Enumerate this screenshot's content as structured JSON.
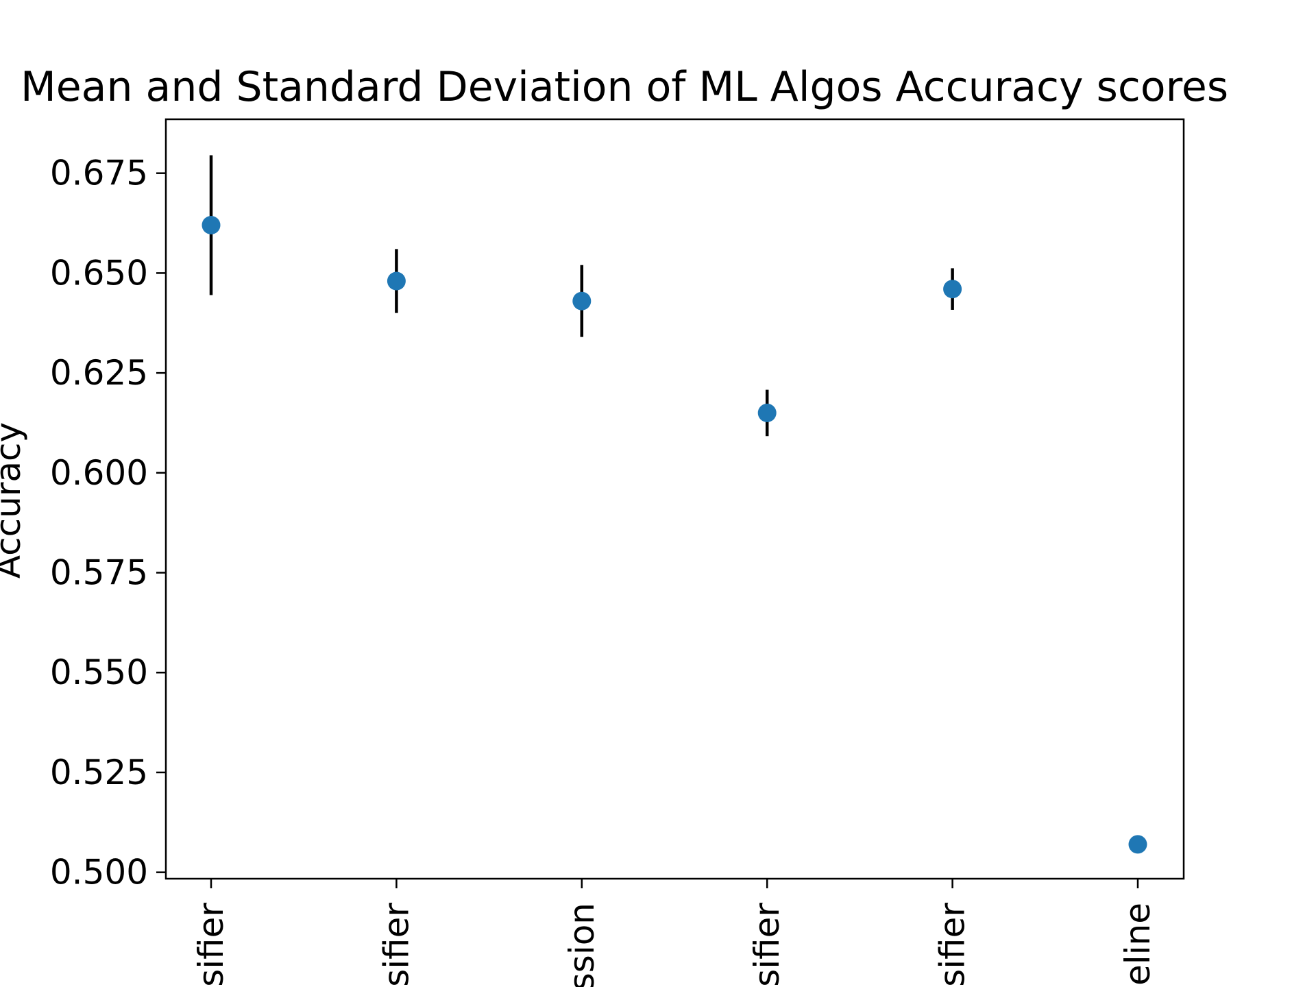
{
  "chart_data": {
    "type": "scatter",
    "title": "Mean and Standard Deviation of ML Algos Accuracy scores",
    "xlabel": "",
    "ylabel": "Accuracy",
    "categories": [
      "sifier",
      "sifier",
      "ssion",
      "sifier",
      "sifier",
      "eline"
    ],
    "series": [
      {
        "values": [
          0.662,
          0.648,
          0.643,
          0.615,
          0.646,
          0.507
        ],
        "std": [
          0.0175,
          0.008,
          0.009,
          0.0058,
          0.0052,
          0.0
        ]
      }
    ],
    "ylim": [
      0.4984,
      0.6885
    ],
    "yticks": [
      0.5,
      0.525,
      0.55,
      0.575,
      0.6,
      0.625,
      0.65,
      0.675
    ],
    "ytick_labels": [
      "0.500",
      "0.525",
      "0.550",
      "0.575",
      "0.600",
      "0.625",
      "0.650",
      "0.675"
    ],
    "grid": false,
    "marker_color": "#1f77b4",
    "errorbar_color": "#000000"
  }
}
